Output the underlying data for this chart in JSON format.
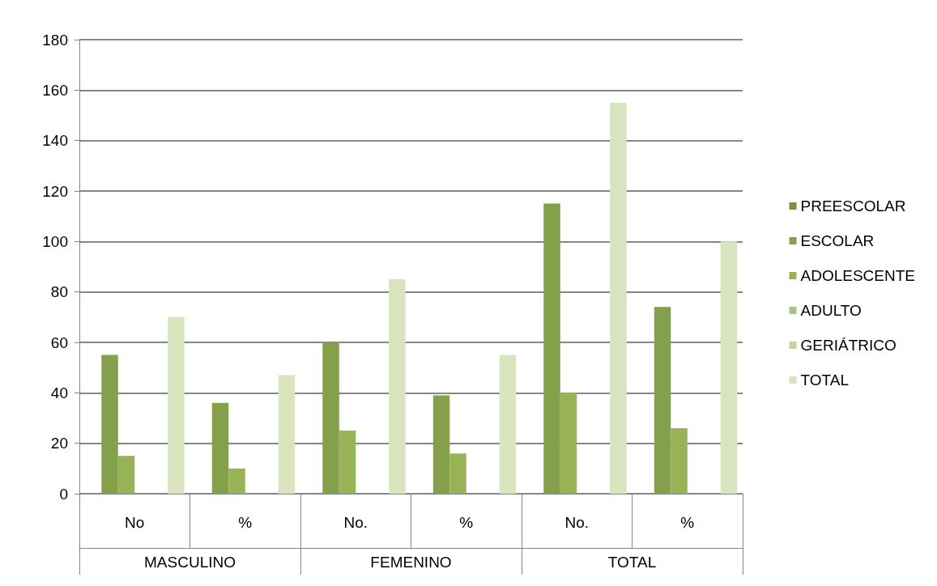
{
  "chart_data": {
    "type": "bar",
    "categories": [
      "No",
      "%",
      "No.",
      "%",
      "No.",
      "%"
    ],
    "annotations": [
      "MASCULINO",
      "FEMENINO",
      "TOTAL"
    ],
    "series": [
      {
        "name": "PREESCOLAR",
        "color": "#77933c",
        "values": [
          0,
          0,
          0,
          0,
          0,
          0
        ]
      },
      {
        "name": "ESCOLAR",
        "color": "#84a04b",
        "values": [
          55,
          36,
          60,
          39,
          115,
          74
        ]
      },
      {
        "name": "ADOLESCENTE",
        "color": "#97b356",
        "values": [
          15,
          10,
          25,
          16,
          40,
          26
        ]
      },
      {
        "name": "ADULTO",
        "color": "#a9c47c",
        "values": [
          0,
          0,
          0,
          0,
          0,
          0
        ]
      },
      {
        "name": "GERIÁTRICO",
        "color": "#c3d69b",
        "values": [
          0,
          0,
          0,
          0,
          0,
          0
        ]
      },
      {
        "name": "TOTAL",
        "color": "#d7e4bd",
        "values": [
          70,
          47,
          85,
          55,
          155,
          100
        ]
      }
    ],
    "ylim": [
      0,
      180
    ],
    "yticks": [
      0,
      20,
      40,
      60,
      80,
      100,
      120,
      140,
      160,
      180
    ],
    "grid": "y",
    "legend": "right"
  }
}
